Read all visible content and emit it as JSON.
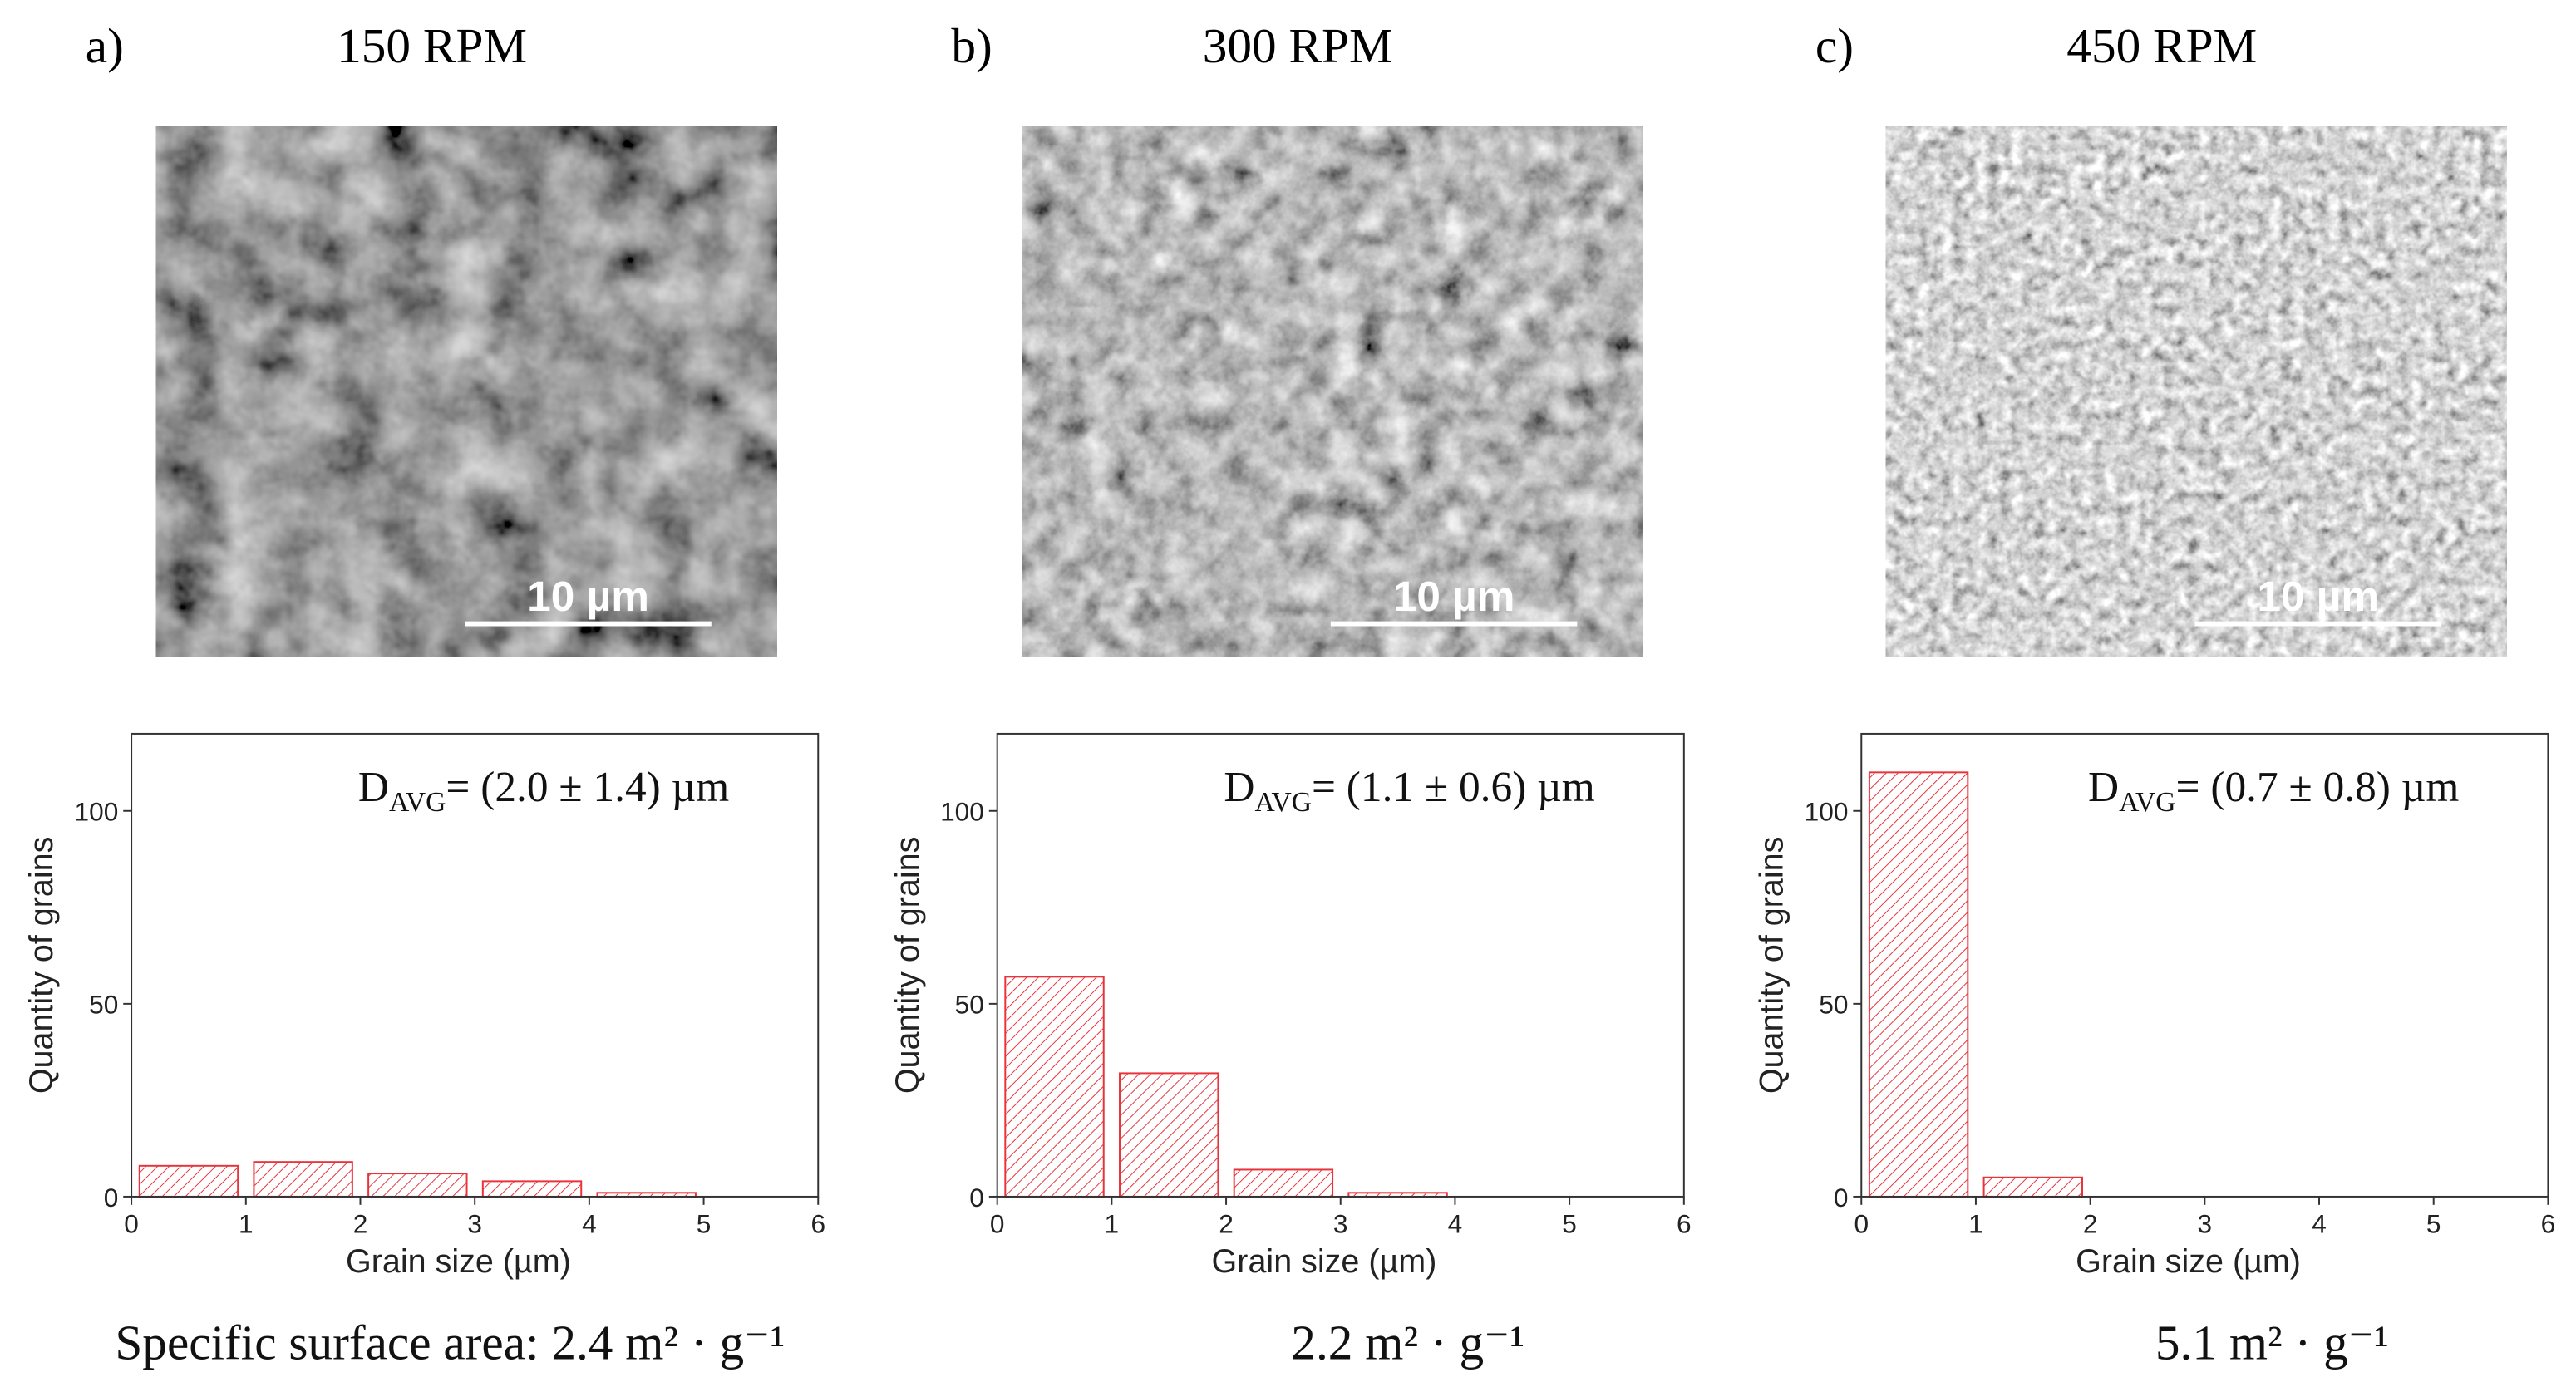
{
  "chart_data": [
    {
      "type": "histogram",
      "panel": "a)",
      "title": "150 RPM",
      "scale_bar": "10 µm",
      "annotation": {
        "symbol": "D",
        "subscript": "AVG",
        "text": "= (2.0 ± 1.4) µm"
      },
      "footer": "Specific surface area: 2.4 m² · g⁻¹",
      "bins": [
        0,
        1,
        2,
        3,
        4,
        5
      ],
      "values": [
        8,
        9,
        6,
        4,
        1
      ],
      "color": "#e8333a",
      "xlabel": "Grain size (µm)",
      "ylabel": "Quantity of grains",
      "xlim": [
        0,
        6
      ],
      "xticks": [
        0,
        1,
        2,
        3,
        4,
        5,
        6
      ],
      "ylim": [
        0,
        120
      ],
      "yticks": [
        0,
        50,
        100
      ]
    },
    {
      "type": "histogram",
      "panel": "b)",
      "title": "300 RPM",
      "scale_bar": "10 µm",
      "annotation": {
        "symbol": "D",
        "subscript": "AVG",
        "text": "= (1.1 ± 0.6) µm"
      },
      "footer": "2.2 m² · g⁻¹",
      "bins": [
        0,
        1,
        2,
        3,
        4
      ],
      "values": [
        57,
        32,
        7,
        1
      ],
      "color": "#e8333a",
      "xlabel": "Grain size (µm)",
      "ylabel": "Quantity of grains",
      "xlim": [
        0,
        6
      ],
      "xticks": [
        0,
        1,
        2,
        3,
        4,
        5,
        6
      ],
      "ylim": [
        0,
        120
      ],
      "yticks": [
        0,
        50,
        100
      ]
    },
    {
      "type": "histogram",
      "panel": "c)",
      "title": "450 RPM",
      "scale_bar": "10 µm",
      "annotation": {
        "symbol": "D",
        "subscript": "AVG",
        "text": "= (0.7 ± 0.8) µm"
      },
      "footer": "5.1 m² · g⁻¹",
      "bins": [
        0,
        1,
        2
      ],
      "values": [
        110,
        5
      ],
      "color": "#e8333a",
      "xlabel": "Grain size (µm)",
      "ylabel": "Quantity of grains",
      "xlim": [
        0,
        6
      ],
      "xticks": [
        0,
        1,
        2,
        3,
        4,
        5,
        6
      ],
      "ylim": [
        0,
        120
      ],
      "yticks": [
        0,
        50,
        100
      ]
    }
  ]
}
